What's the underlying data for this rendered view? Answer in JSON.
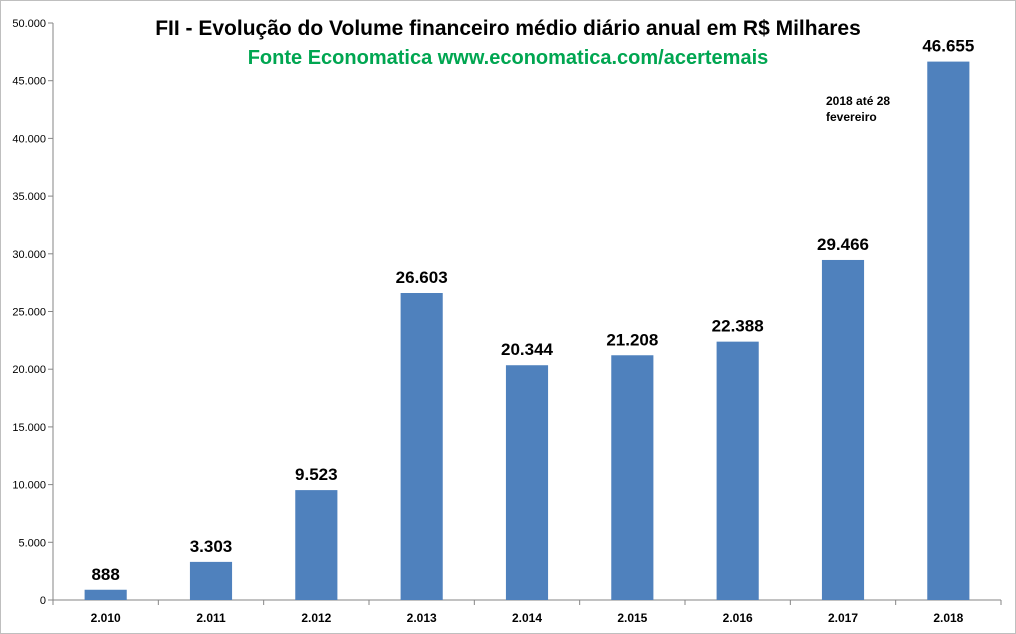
{
  "chart_data": {
    "type": "bar",
    "title": "FII - Evolução do Volume financeiro médio diário anual em R$ Milhares",
    "subtitle": "Fonte Economatica www.economatica.com/acertemais",
    "categories": [
      "2.010",
      "2.011",
      "2.012",
      "2.013",
      "2.014",
      "2.015",
      "2.016",
      "2.017",
      "2.018"
    ],
    "values": [
      888,
      3303,
      9523,
      26603,
      20344,
      21208,
      22388,
      29466,
      46655
    ],
    "value_labels": [
      "888",
      "3.303",
      "9.523",
      "26.603",
      "20.344",
      "21.208",
      "22.388",
      "29.466",
      "46.655"
    ],
    "ylim": [
      0,
      50000
    ],
    "yticks": [
      0,
      5000,
      10000,
      15000,
      20000,
      25000,
      30000,
      35000,
      40000,
      45000,
      50000
    ],
    "ytick_labels": [
      "0",
      "5.000",
      "10.000",
      "15.000",
      "20.000",
      "25.000",
      "30.000",
      "35.000",
      "40.000",
      "45.000",
      "50.000"
    ],
    "annotation_lines": [
      "2018 até 28",
      "fevereiro"
    ],
    "annotation_category": "2.018",
    "grid": false,
    "legend": "none",
    "colors": {
      "bar": "#4f81bd",
      "subtitle": "#00a651",
      "axis": "#868686"
    }
  }
}
